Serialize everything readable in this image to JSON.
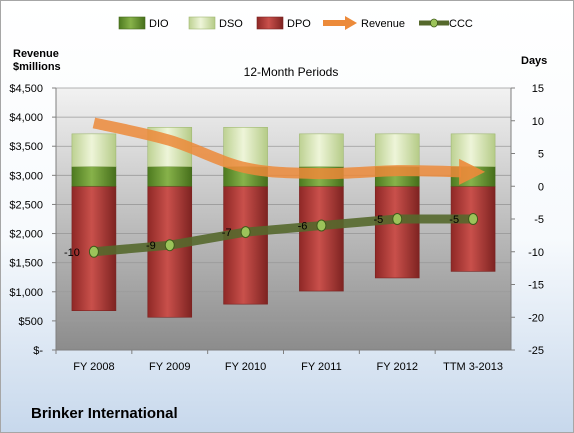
{
  "chart_data": {
    "type": "bar",
    "title": "12-Month Periods",
    "company": "Brinker International",
    "ylabel_left_line1": "Revenue",
    "ylabel_left_line2": "$millions",
    "ylabel_right": "Days",
    "categories": [
      "FY 2008",
      "FY 2009",
      "FY 2010",
      "FY 2011",
      "FY 2012",
      "TTM 3-2013"
    ],
    "left_axis": {
      "min": 0,
      "max": 4500,
      "step": 500,
      "tick_labels": [
        "$-",
        "$500",
        "$1,000",
        "$1,500",
        "$2,000",
        "$2,500",
        "$3,000",
        "$3,500",
        "$4,000",
        "$4,500"
      ]
    },
    "right_axis": {
      "min": -25,
      "max": 15,
      "step": 5,
      "tick_labels": [
        "-25",
        "-20",
        "-15",
        "-10",
        "-5",
        "0",
        "5",
        "10",
        "15"
      ]
    },
    "series": [
      {
        "name": "DIO",
        "axis": "right",
        "kind": "stacked-bar",
        "color": "#6e9b2f",
        "values": [
          3,
          3,
          3,
          3,
          3,
          3
        ]
      },
      {
        "name": "DSO",
        "axis": "right",
        "kind": "stacked-bar",
        "color": "#dbe9b8",
        "values": [
          5,
          6,
          6,
          5,
          5,
          5
        ]
      },
      {
        "name": "DPO",
        "axis": "right",
        "kind": "negative-bar",
        "color": "#b93b38",
        "values": [
          -19,
          -20,
          -18,
          -16,
          -14,
          -13
        ]
      },
      {
        "name": "Revenue",
        "axis": "left",
        "kind": "line",
        "color": "#ec8a3a",
        "values": [
          3900,
          3600,
          3130,
          3030,
          3080,
          3060
        ]
      },
      {
        "name": "CCC",
        "axis": "right",
        "kind": "line",
        "color": "#55682c",
        "values": [
          -10,
          -9,
          -7,
          -6,
          -5,
          -5
        ]
      }
    ],
    "ccc_labels": [
      "-10",
      "-9",
      "-7",
      "-6",
      "-5",
      "-5"
    ],
    "grid": true,
    "legend_position": "top"
  }
}
